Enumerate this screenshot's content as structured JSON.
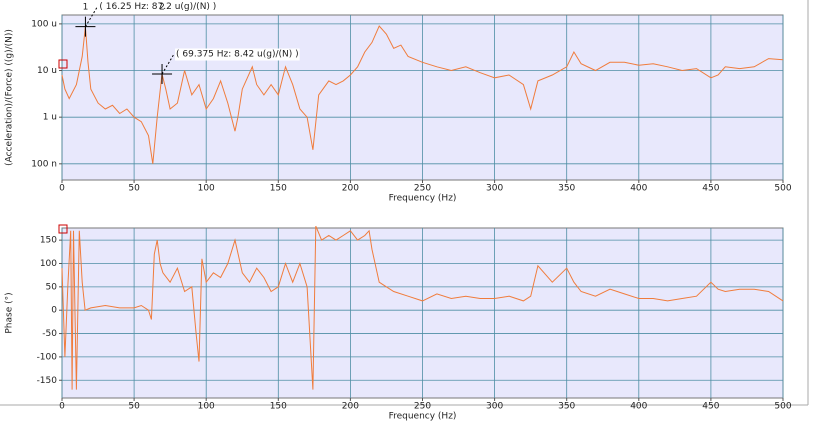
{
  "chart_data": [
    {
      "type": "line",
      "xlabel": "Frequency (Hz)",
      "ylabel": "(Acceleration)/(Force) ((g)/(N))",
      "log": true,
      "grid": true,
      "color": "#f07c3c",
      "background": "#e8e8fc",
      "grid_color": "#4e8ea4",
      "xlim": [
        0,
        500
      ],
      "xticks": [
        0,
        50,
        100,
        150,
        200,
        250,
        300,
        350,
        400,
        450,
        500
      ],
      "ylim": [
        4.5e-08,
        0.000155
      ],
      "yticks": [
        {
          "value": 1e-07,
          "label": "100 n"
        },
        {
          "value": 1e-06,
          "label": "1 u"
        },
        {
          "value": 1e-05,
          "label": "10 u"
        },
        {
          "value": 0.0001,
          "label": "100 u"
        }
      ],
      "x": [
        0,
        2,
        5,
        10,
        14,
        16.25,
        18,
        20,
        25,
        30,
        35,
        40,
        45,
        50,
        55,
        60,
        63,
        66,
        69.375,
        72,
        75,
        80,
        85,
        90,
        95,
        100,
        105,
        110,
        115,
        120,
        122,
        125,
        132,
        135,
        140,
        145,
        150,
        155,
        160,
        165,
        170,
        174,
        178,
        185,
        190,
        195,
        200,
        205,
        210,
        215,
        220,
        225,
        230,
        235,
        240,
        250,
        260,
        270,
        280,
        290,
        300,
        310,
        320,
        325,
        330,
        340,
        350,
        355,
        360,
        370,
        380,
        390,
        400,
        410,
        420,
        430,
        440,
        450,
        455,
        460,
        470,
        480,
        490,
        500
      ],
      "values": [
        8e-06,
        4e-06,
        2.5e-06,
        5e-06,
        2e-05,
        8.72e-05,
        1.5e-05,
        4e-06,
        2e-06,
        1.5e-06,
        1.8e-06,
        1.2e-06,
        1.5e-06,
        1e-06,
        8e-07,
        4e-07,
        1e-07,
        1e-06,
        8.42e-06,
        4e-06,
        1.5e-06,
        2e-06,
        1e-05,
        3e-06,
        5e-06,
        1.5e-06,
        2.5e-06,
        6e-06,
        2e-06,
        5e-07,
        1e-06,
        4e-06,
        1.2e-05,
        5e-06,
        3e-06,
        5e-06,
        3e-06,
        1.2e-05,
        5e-06,
        1.5e-06,
        1e-06,
        2e-07,
        3e-06,
        6e-06,
        5e-06,
        6e-06,
        8e-06,
        1.2e-05,
        2.5e-05,
        4e-05,
        9e-05,
        6e-05,
        3e-05,
        3.5e-05,
        2e-05,
        1.5e-05,
        1.2e-05,
        1e-05,
        1.2e-05,
        9e-06,
        7e-06,
        8e-06,
        5e-06,
        1.5e-06,
        6e-06,
        8e-06,
        1.2e-05,
        2.5e-05,
        1.4e-05,
        1e-05,
        1.5e-05,
        1.5e-05,
        1.3e-05,
        1.4e-05,
        1.2e-05,
        1e-05,
        1.1e-05,
        7e-06,
        8e-06,
        1.2e-05,
        1.1e-05,
        1.2e-05,
        1.8e-05,
        1.7e-05
      ],
      "cursors": [
        {
          "label": "1",
          "x": 16.25,
          "y": 8.72e-05,
          "text": "( 16.25 Hz:  87.2 u(g)/(N) )"
        },
        {
          "label": "2",
          "x": 69.375,
          "y": 8.42e-06,
          "text": "( 69.375 Hz:  8.42 u(g)/(N) )"
        }
      ]
    },
    {
      "type": "line",
      "xlabel": "Frequency (Hz)",
      "ylabel": "Phase (°)",
      "log": false,
      "grid": true,
      "color": "#f07c3c",
      "background": "#e8e8fc",
      "grid_color": "#4e8ea4",
      "xlim": [
        0,
        500
      ],
      "xticks": [
        0,
        50,
        100,
        150,
        200,
        250,
        300,
        350,
        400,
        450,
        500
      ],
      "ylim": [
        -188,
        176
      ],
      "yticks": [
        -150,
        -100,
        -50,
        0,
        50,
        100,
        150
      ],
      "x": [
        0,
        2,
        4,
        6,
        7,
        8,
        10,
        12,
        14,
        16,
        20,
        30,
        40,
        50,
        55,
        60,
        62,
        64,
        66,
        68,
        70,
        75,
        80,
        85,
        90,
        93,
        95,
        97,
        100,
        105,
        110,
        115,
        120,
        125,
        130,
        135,
        140,
        145,
        150,
        155,
        160,
        165,
        170,
        174,
        176,
        180,
        185,
        190,
        195,
        200,
        205,
        210,
        213,
        215,
        220,
        230,
        240,
        250,
        260,
        270,
        280,
        290,
        300,
        310,
        320,
        325,
        330,
        340,
        350,
        355,
        360,
        370,
        380,
        390,
        400,
        410,
        420,
        430,
        440,
        450,
        455,
        460,
        470,
        480,
        490,
        500
      ],
      "values": [
        90,
        -100,
        50,
        170,
        -170,
        170,
        -170,
        170,
        60,
        0,
        5,
        10,
        5,
        5,
        10,
        0,
        -20,
        120,
        150,
        100,
        80,
        60,
        90,
        40,
        50,
        -50,
        -110,
        110,
        60,
        80,
        70,
        100,
        150,
        80,
        60,
        90,
        70,
        40,
        50,
        100,
        60,
        100,
        50,
        -170,
        180,
        150,
        160,
        150,
        160,
        170,
        150,
        160,
        170,
        130,
        60,
        40,
        30,
        20,
        35,
        25,
        30,
        25,
        25,
        30,
        20,
        30,
        95,
        60,
        90,
        60,
        40,
        30,
        45,
        35,
        25,
        25,
        20,
        25,
        30,
        60,
        45,
        40,
        45,
        45,
        40,
        20
      ]
    }
  ]
}
